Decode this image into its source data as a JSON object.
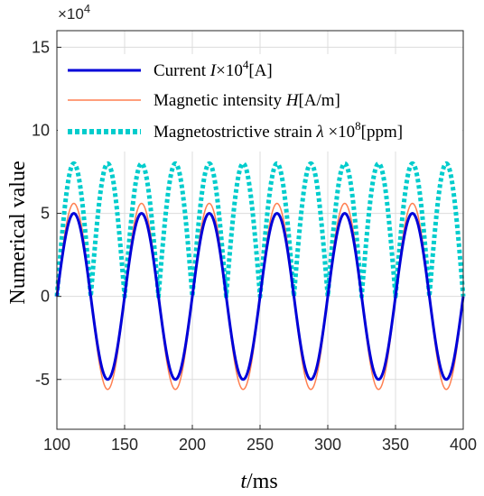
{
  "chart_data": {
    "type": "line",
    "xlabel_italic": "t",
    "xlabel_rest": "/ms",
    "ylabel": "Numerical value",
    "y_multiplier_base": "×10",
    "y_multiplier_exp": "4",
    "xlim": [
      100,
      400
    ],
    "ylim": [
      -8,
      16
    ],
    "x_ticks": [
      100,
      150,
      200,
      250,
      300,
      350,
      400
    ],
    "y_ticks": [
      -5,
      0,
      5,
      10,
      15
    ],
    "grid": true,
    "legend_position": "top-left",
    "legend": [
      {
        "prefix": "Current ",
        "italic": "I",
        "mid": "×10",
        "sup": "4",
        "suffix": "[A]"
      },
      {
        "prefix": "Magnetic intensity ",
        "italic": "H",
        "mid": "",
        "sup": "",
        "suffix": "[A/m]"
      },
      {
        "prefix": "Magnetostrictive strain ",
        "italic": "λ",
        "mid": " ×10",
        "sup": "8",
        "suffix": "[ppm]"
      }
    ],
    "series": [
      {
        "key": "current",
        "color": "#0000d8",
        "style": "solid",
        "amplitude": 5,
        "frequency_hz": 20,
        "function": "sine"
      },
      {
        "key": "field",
        "color": "#ff7f50",
        "style": "solid",
        "amplitude": 5.6,
        "frequency_hz": 20,
        "function": "sine"
      },
      {
        "key": "strain",
        "color": "#00cccc",
        "style": "dotted",
        "amplitude": 8,
        "frequency_hz": 20,
        "function": "abs-sine"
      }
    ]
  }
}
